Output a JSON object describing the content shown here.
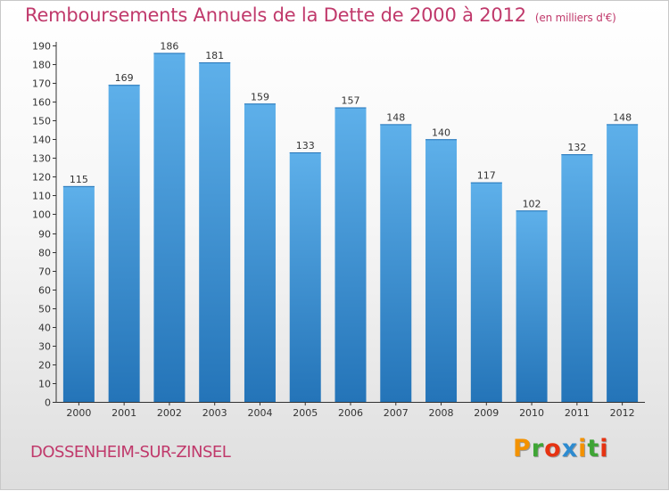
{
  "title": "Remboursements Annuels de la Dette de 2000 à 2012",
  "unit": "(en milliers d'€)",
  "city": "DOSSENHEIM-SUR-ZINSEL",
  "logo": {
    "letters": [
      "P",
      "r",
      "o",
      "x",
      "i",
      "t",
      "i"
    ],
    "colors": [
      "#f39200",
      "#3fa535",
      "#e63312",
      "#2d8bd0",
      "#f39200",
      "#3fa535",
      "#e63312"
    ]
  },
  "colors": {
    "title": "#c0396b",
    "bar_top": "#5eb0ea",
    "bar_bottom": "#2474b8",
    "axis": "#333333"
  },
  "chart_data": {
    "type": "bar",
    "title": "Remboursements Annuels de la Dette de 2000 à 2012",
    "xlabel": "",
    "ylabel": "",
    "categories": [
      "2000",
      "2001",
      "2002",
      "2003",
      "2004",
      "2005",
      "2006",
      "2007",
      "2008",
      "2009",
      "2010",
      "2011",
      "2012"
    ],
    "values": [
      115,
      169,
      186,
      181,
      159,
      133,
      157,
      148,
      140,
      117,
      102,
      132,
      148
    ],
    "ylim": [
      0,
      190
    ],
    "ytick_step": 10,
    "grid": false
  }
}
